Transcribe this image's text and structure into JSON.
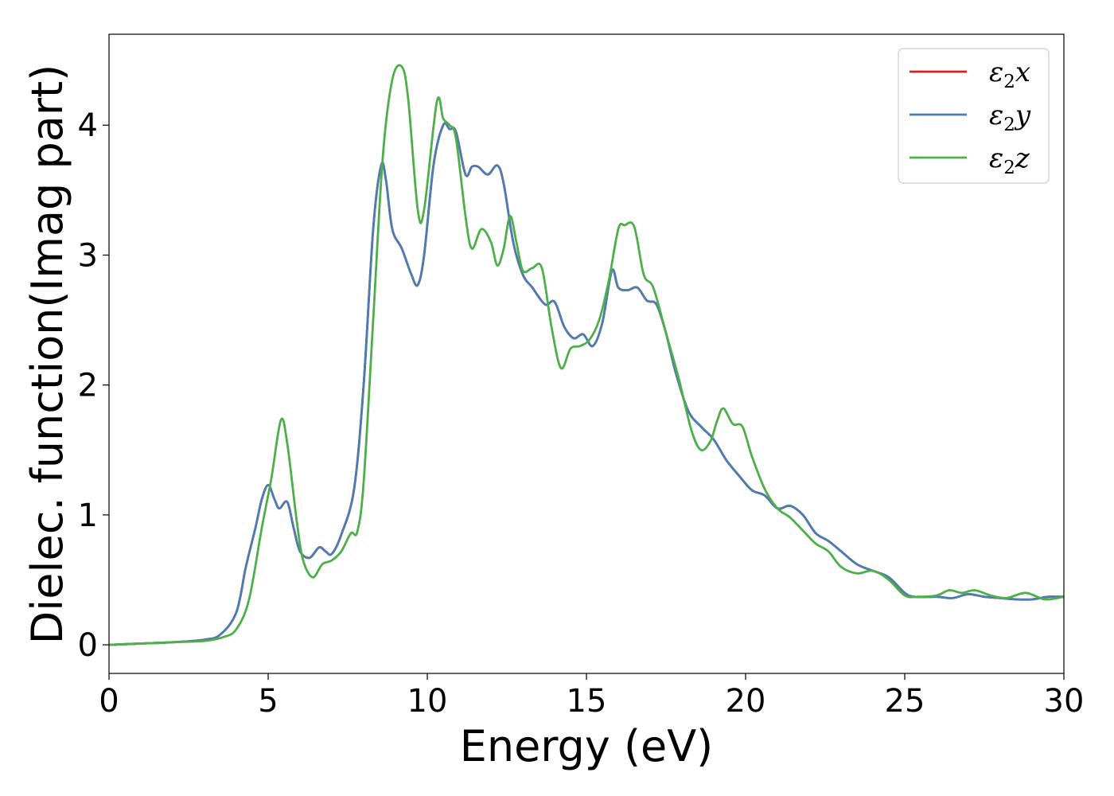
{
  "chart_data": {
    "type": "line",
    "title": "",
    "xlabel": "Energy (eV)",
    "ylabel": "Dielec. function(Imag part)",
    "xlim": [
      0,
      30
    ],
    "ylim": [
      -0.22,
      4.7
    ],
    "xticks": [
      0,
      5,
      10,
      15,
      20,
      25,
      30
    ],
    "yticks": [
      0,
      1,
      2,
      3,
      4
    ],
    "grid": false,
    "legend_position": "top-right",
    "series": [
      {
        "name": "ε2x",
        "legend_main": "ε",
        "legend_sub": "2",
        "legend_var": "x",
        "color": "#e41a1c",
        "x": [
          0,
          1,
          2,
          3,
          3.5,
          4,
          4.3,
          4.6,
          4.8,
          5.0,
          5.2,
          5.35,
          5.6,
          5.8,
          6.0,
          6.3,
          6.6,
          6.8,
          7.0,
          7.3,
          7.7,
          8.0,
          8.3,
          8.55,
          8.7,
          8.9,
          9.2,
          9.5,
          9.7,
          9.9,
          10.2,
          10.5,
          10.7,
          10.9,
          11.2,
          11.4,
          11.6,
          11.9,
          12.2,
          12.4,
          12.7,
          13.0,
          13.3,
          13.7,
          14.0,
          14.3,
          14.6,
          14.9,
          15.2,
          15.5,
          15.8,
          16.0,
          16.3,
          16.6,
          16.9,
          17.2,
          17.5,
          17.8,
          18.2,
          18.6,
          19.0,
          19.4,
          19.8,
          20.2,
          20.6,
          21.0,
          21.4,
          21.8,
          22.2,
          22.6,
          23.0,
          23.5,
          24.0,
          24.5,
          25.0,
          25.3,
          26.0,
          26.5,
          27.0,
          27.5,
          28.0,
          28.5,
          29.0,
          29.5,
          30
        ],
        "values": [
          0.0,
          0.01,
          0.02,
          0.04,
          0.08,
          0.25,
          0.6,
          0.9,
          1.12,
          1.23,
          1.12,
          1.05,
          1.1,
          0.9,
          0.72,
          0.67,
          0.75,
          0.72,
          0.7,
          0.85,
          1.2,
          2.0,
          3.2,
          3.69,
          3.58,
          3.2,
          3.05,
          2.85,
          2.77,
          3.0,
          3.7,
          4.0,
          3.97,
          3.95,
          3.62,
          3.68,
          3.68,
          3.62,
          3.69,
          3.55,
          3.1,
          2.85,
          2.75,
          2.62,
          2.64,
          2.45,
          2.36,
          2.39,
          2.3,
          2.48,
          2.88,
          2.75,
          2.73,
          2.75,
          2.65,
          2.62,
          2.4,
          2.1,
          1.8,
          1.68,
          1.58,
          1.42,
          1.3,
          1.19,
          1.15,
          1.05,
          1.07,
          1.0,
          0.86,
          0.8,
          0.72,
          0.62,
          0.57,
          0.52,
          0.4,
          0.37,
          0.37,
          0.36,
          0.39,
          0.37,
          0.36,
          0.35,
          0.35,
          0.37,
          0.37
        ]
      },
      {
        "name": "ε2y",
        "legend_main": "ε",
        "legend_sub": "2",
        "legend_var": "y",
        "color": "#4a7db3",
        "x": [
          0,
          1,
          2,
          3,
          3.5,
          4,
          4.3,
          4.6,
          4.8,
          5.0,
          5.2,
          5.35,
          5.6,
          5.8,
          6.0,
          6.3,
          6.6,
          6.8,
          7.0,
          7.3,
          7.7,
          8.0,
          8.3,
          8.55,
          8.7,
          8.9,
          9.2,
          9.5,
          9.7,
          9.9,
          10.2,
          10.5,
          10.7,
          10.9,
          11.2,
          11.4,
          11.6,
          11.9,
          12.2,
          12.4,
          12.7,
          13.0,
          13.3,
          13.7,
          14.0,
          14.3,
          14.6,
          14.9,
          15.2,
          15.5,
          15.8,
          16.0,
          16.3,
          16.6,
          16.9,
          17.2,
          17.5,
          17.8,
          18.2,
          18.6,
          19.0,
          19.4,
          19.8,
          20.2,
          20.6,
          21.0,
          21.4,
          21.8,
          22.2,
          22.6,
          23.0,
          23.5,
          24.0,
          24.5,
          25.0,
          25.3,
          26.0,
          26.5,
          27.0,
          27.5,
          28.0,
          28.5,
          29.0,
          29.5,
          30
        ],
        "values": [
          0.0,
          0.01,
          0.02,
          0.04,
          0.08,
          0.25,
          0.6,
          0.9,
          1.12,
          1.23,
          1.12,
          1.05,
          1.1,
          0.9,
          0.72,
          0.67,
          0.75,
          0.72,
          0.7,
          0.85,
          1.2,
          2.0,
          3.2,
          3.69,
          3.58,
          3.2,
          3.05,
          2.85,
          2.77,
          3.0,
          3.7,
          4.0,
          3.97,
          3.95,
          3.62,
          3.68,
          3.68,
          3.62,
          3.69,
          3.55,
          3.1,
          2.85,
          2.75,
          2.62,
          2.64,
          2.45,
          2.36,
          2.39,
          2.3,
          2.48,
          2.88,
          2.75,
          2.73,
          2.75,
          2.65,
          2.62,
          2.4,
          2.1,
          1.8,
          1.68,
          1.58,
          1.42,
          1.3,
          1.19,
          1.15,
          1.05,
          1.07,
          1.0,
          0.86,
          0.8,
          0.72,
          0.62,
          0.57,
          0.52,
          0.4,
          0.37,
          0.37,
          0.36,
          0.39,
          0.37,
          0.36,
          0.35,
          0.35,
          0.37,
          0.37
        ]
      },
      {
        "name": "ε2z",
        "legend_main": "ε",
        "legend_sub": "2",
        "legend_var": "z",
        "color": "#4daf4a",
        "x": [
          0,
          1,
          2,
          3,
          3.6,
          4,
          4.4,
          4.8,
          5.1,
          5.4,
          5.6,
          5.9,
          6.1,
          6.4,
          6.7,
          7.0,
          7.3,
          7.6,
          7.8,
          8.0,
          8.3,
          8.6,
          8.9,
          9.2,
          9.4,
          9.7,
          9.9,
          10.3,
          10.5,
          10.7,
          10.9,
          11.2,
          11.4,
          11.7,
          12.0,
          12.2,
          12.4,
          12.6,
          12.8,
          13.0,
          13.3,
          13.6,
          13.9,
          14.2,
          14.5,
          14.8,
          15.1,
          15.4,
          15.7,
          16.0,
          16.2,
          16.5,
          16.8,
          17.1,
          17.5,
          17.9,
          18.3,
          18.6,
          18.9,
          19.1,
          19.3,
          19.6,
          19.9,
          20.2,
          20.6,
          21.0,
          21.4,
          21.8,
          22.2,
          22.6,
          23.0,
          23.5,
          24.0,
          24.5,
          25.0,
          25.4,
          26.0,
          26.4,
          26.8,
          27.2,
          27.7,
          28.2,
          28.8,
          29.4,
          30
        ],
        "values": [
          0.0,
          0.01,
          0.02,
          0.03,
          0.06,
          0.12,
          0.35,
          0.9,
          1.28,
          1.73,
          1.55,
          0.95,
          0.65,
          0.52,
          0.62,
          0.65,
          0.72,
          0.86,
          0.87,
          1.25,
          2.5,
          3.75,
          4.35,
          4.45,
          4.2,
          3.35,
          3.35,
          4.18,
          4.05,
          4.0,
          3.9,
          3.3,
          3.05,
          3.2,
          3.1,
          2.92,
          3.05,
          3.3,
          3.1,
          2.88,
          2.9,
          2.9,
          2.45,
          2.13,
          2.28,
          2.3,
          2.35,
          2.5,
          2.8,
          3.2,
          3.23,
          3.22,
          2.85,
          2.75,
          2.4,
          2.05,
          1.65,
          1.5,
          1.57,
          1.72,
          1.82,
          1.7,
          1.68,
          1.45,
          1.2,
          1.05,
          0.98,
          0.88,
          0.78,
          0.72,
          0.6,
          0.55,
          0.57,
          0.5,
          0.38,
          0.37,
          0.38,
          0.42,
          0.4,
          0.42,
          0.38,
          0.36,
          0.4,
          0.35,
          0.37
        ]
      }
    ]
  }
}
